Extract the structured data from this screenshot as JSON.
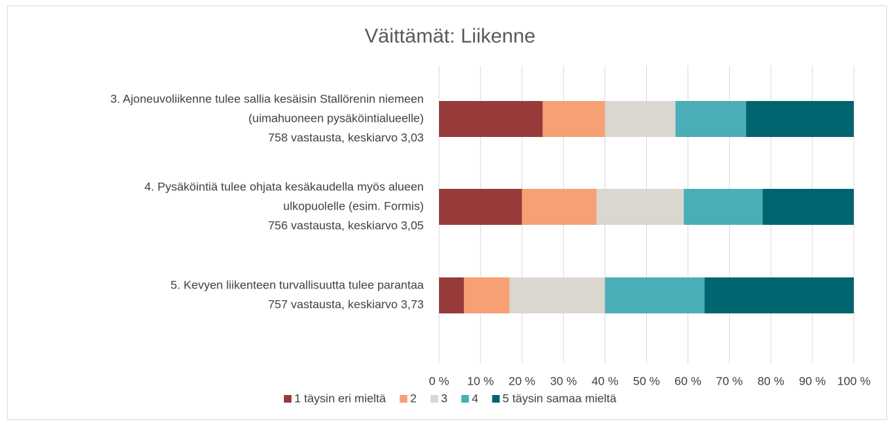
{
  "chart_data": {
    "type": "stacked-barh",
    "title": "Väittämät: Liikenne",
    "categories": [
      [
        "3. Ajoneuvoliikenne tulee sallia kesäisin Stallörenin niemeen",
        "(uimahuoneen pysäköintialueelle)",
        "758 vastausta, keskiarvo 3,03"
      ],
      [
        "4. Pysäköintiä tulee ohjata kesäkaudella myös alueen",
        "ulkopuolelle (esim. Formis)",
        "756 vastausta, keskiarvo 3,05"
      ],
      [
        "5. Kevyen liikenteen turvallisuutta tulee parantaa",
        "757 vastausta, keskiarvo 3,73"
      ]
    ],
    "series": [
      {
        "name": "1 täysin eri mieltä",
        "color": "#963b3a",
        "values": [
          25,
          20,
          6
        ]
      },
      {
        "name": "2",
        "color": "#f7a074",
        "values": [
          15,
          18,
          11
        ]
      },
      {
        "name": "3",
        "color": "#d9d7cf",
        "values": [
          17,
          21,
          23
        ]
      },
      {
        "name": "4",
        "color": "#4badb8",
        "values": [
          17,
          19,
          24
        ]
      },
      {
        "name": "5 täysin samaa mieltä",
        "color": "#006570",
        "values": [
          26,
          22,
          36
        ]
      }
    ],
    "xlim": [
      0,
      100
    ],
    "xticks": [
      {
        "value": 0,
        "label": "0 %"
      },
      {
        "value": 10,
        "label": "10 %"
      },
      {
        "value": 20,
        "label": "20 %"
      },
      {
        "value": 30,
        "label": "30 %"
      },
      {
        "value": 40,
        "label": "40 %"
      },
      {
        "value": 50,
        "label": "50 %"
      },
      {
        "value": 60,
        "label": "60 %"
      },
      {
        "value": 70,
        "label": "70 %"
      },
      {
        "value": 80,
        "label": "80 %"
      },
      {
        "value": 90,
        "label": "90 %"
      },
      {
        "value": 100,
        "label": "100 %"
      }
    ],
    "grid": true,
    "legend": "bottom"
  }
}
